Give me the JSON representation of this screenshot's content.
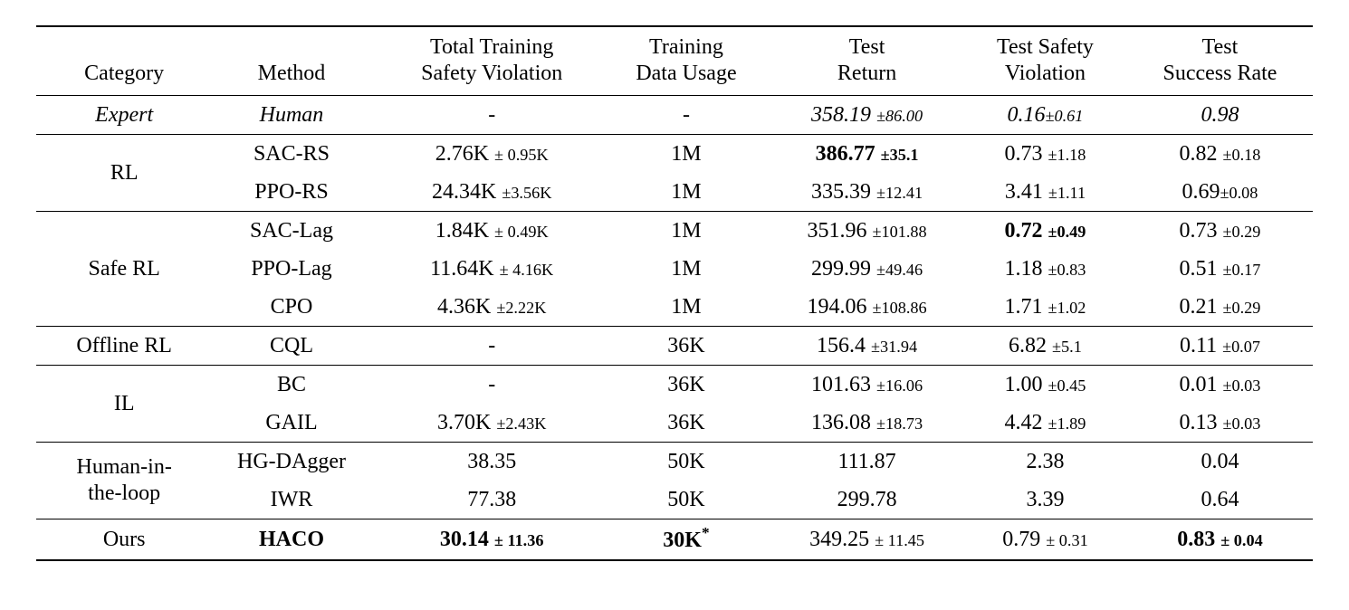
{
  "headers": {
    "category": "Category",
    "method": "Method",
    "tsv_l1": "Total Training",
    "tsv_l2": "Safety Violation",
    "tdu_l1": "Training",
    "tdu_l2": "Data Usage",
    "tr_l1": "Test",
    "tr_l2": "Return",
    "tsafe_l1": "Test Safety",
    "tsafe_l2": "Violation",
    "tsucc_l1": "Test",
    "tsucc_l2": "Success Rate"
  },
  "groups": [
    {
      "category": "Expert",
      "category_style": "i",
      "rows": [
        {
          "method": "Human",
          "method_style": "i",
          "tsv": "-",
          "tsv_std": "",
          "tdu": "-",
          "tret": "358.19 ",
          "tret_std": "±86.00",
          "tret_style": "i",
          "tret_std_style": "i",
          "tsafe": "0.16",
          "tsafe_std": "±0.61",
          "tsafe_style": "i",
          "tsafe_std_style": "i",
          "tsucc": "0.98",
          "tsucc_std": "",
          "tsucc_style": "i"
        }
      ]
    },
    {
      "category": "RL",
      "rows": [
        {
          "method": "SAC-RS",
          "tsv": "2.76K ",
          "tsv_std": "± 0.95K",
          "tdu": "1M",
          "tret": "386.77 ",
          "tret_std": "±35.1",
          "tret_style": "b",
          "tsafe": "0.73 ",
          "tsafe_std": "±1.18",
          "tsucc": "0.82 ",
          "tsucc_std": "±0.18"
        },
        {
          "method": "PPO-RS",
          "tsv": "24.34K ",
          "tsv_std": "±3.56K",
          "tdu": "1M",
          "tret": "335.39 ",
          "tret_std": "±12.41",
          "tsafe": "3.41 ",
          "tsafe_std": "±1.11",
          "tsucc": "0.69",
          "tsucc_std": "±0.08"
        }
      ]
    },
    {
      "category": "Safe RL",
      "rows": [
        {
          "method": "SAC-Lag",
          "tsv": "1.84K ",
          "tsv_std": "± 0.49K",
          "tdu": "1M",
          "tret": "351.96 ",
          "tret_std": "±101.88",
          "tsafe": "0.72 ",
          "tsafe_std": "±0.49",
          "tsafe_style": "b",
          "tsucc": "0.73 ",
          "tsucc_std": "±0.29"
        },
        {
          "method": "PPO-Lag",
          "tsv": "11.64K ",
          "tsv_std": "± 4.16K",
          "tdu": "1M",
          "tret": "299.99 ",
          "tret_std": "±49.46",
          "tsafe": "1.18 ",
          "tsafe_std": "±0.83",
          "tsucc": "0.51 ",
          "tsucc_std": "±0.17"
        },
        {
          "method": "CPO",
          "tsv": "4.36K ",
          "tsv_std": "±2.22K",
          "tdu": "1M",
          "tret": "194.06 ",
          "tret_std": "±108.86",
          "tsafe": "1.71 ",
          "tsafe_std": "±1.02",
          "tsucc": "0.21 ",
          "tsucc_std": "±0.29"
        }
      ]
    },
    {
      "category": "Offline RL",
      "rows": [
        {
          "method": "CQL",
          "tsv": "-",
          "tsv_std": "",
          "tdu": "36K",
          "tret": "156.4 ",
          "tret_std": "±31.94",
          "tsafe": "6.82 ",
          "tsafe_std": "±5.1",
          "tsucc": "0.11 ",
          "tsucc_std": "±0.07"
        }
      ]
    },
    {
      "category": "IL",
      "rows": [
        {
          "method": "BC",
          "tsv": "-",
          "tsv_std": "",
          "tdu": "36K",
          "tret": "101.63 ",
          "tret_std": "±16.06",
          "tsafe": "1.00 ",
          "tsafe_std": "±0.45",
          "tsucc": "0.01 ",
          "tsucc_std": "±0.03"
        },
        {
          "method": "GAIL",
          "tsv": "3.70K ",
          "tsv_std": "±2.43K",
          "tdu": "36K",
          "tret": "136.08 ",
          "tret_std": "±18.73",
          "tsafe": "4.42 ",
          "tsafe_std": "±1.89",
          "tsucc": "0.13 ",
          "tsucc_std": "±0.03"
        }
      ]
    },
    {
      "category_l1": "Human-in-",
      "category_l2": "the-loop",
      "two_line_category": true,
      "rows": [
        {
          "method": "HG-DAgger",
          "tsv": "38.35",
          "tsv_std": "",
          "tdu": "50K",
          "tret": "111.87",
          "tret_std": "",
          "tsafe": "2.38",
          "tsafe_std": "",
          "tsucc": "0.04",
          "tsucc_std": ""
        },
        {
          "method": "IWR",
          "tsv": "77.38",
          "tsv_std": "",
          "tdu": "50K",
          "tret": "299.78",
          "tret_std": "",
          "tsafe": "3.39",
          "tsafe_std": "",
          "tsucc": "0.64",
          "tsucc_std": ""
        }
      ]
    },
    {
      "category": "Ours",
      "rows": [
        {
          "method": "HACO",
          "method_style": "b",
          "tsv": "30.14 ",
          "tsv_std": "± 11.36",
          "tsv_style": "b",
          "tdu": "30K",
          "tdu_style": "b",
          "tdu_sup": "*",
          "tret": "349.25 ",
          "tret_std": "± 11.45",
          "tsafe": "0.79 ",
          "tsafe_std": "± 0.31",
          "tsucc": "0.83 ",
          "tsucc_std": "± 0.04",
          "tsucc_style": "b"
        }
      ]
    }
  ]
}
